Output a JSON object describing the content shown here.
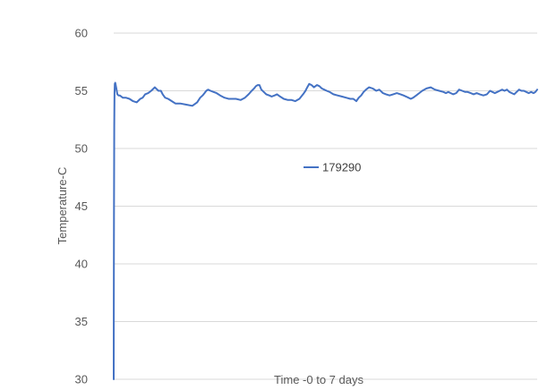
{
  "chart_data": {
    "type": "line",
    "title": "",
    "xlabel": "Time -0 to 7 days",
    "ylabel": "Temperature-C",
    "xlim": [
      0,
      7
    ],
    "ylim": [
      30,
      60
    ],
    "ytick_step": 5,
    "yticks": [
      "30",
      "35",
      "40",
      "45",
      "50",
      "55",
      "60"
    ],
    "grid": true,
    "legend_position": "center-right",
    "series": [
      {
        "name": "179290",
        "color": "#4472c4",
        "x": [
          0.0,
          0.002,
          0.005,
          0.009,
          0.013,
          0.018,
          0.025,
          0.04,
          0.06,
          0.08,
          0.1,
          0.15,
          0.2,
          0.26,
          0.32,
          0.38,
          0.44,
          0.48,
          0.52,
          0.57,
          0.62,
          0.68,
          0.74,
          0.78,
          0.81,
          0.85,
          0.9,
          0.96,
          1.02,
          1.1,
          1.2,
          1.3,
          1.38,
          1.43,
          1.47,
          1.5,
          1.53,
          1.56,
          1.6,
          1.65,
          1.7,
          1.76,
          1.83,
          1.9,
          1.95,
          2.02,
          2.1,
          2.17,
          2.23,
          2.28,
          2.32,
          2.35,
          2.38,
          2.41,
          2.44,
          2.48,
          2.52,
          2.57,
          2.61,
          2.66,
          2.7,
          2.75,
          2.81,
          2.88,
          2.94,
          3.0,
          3.07,
          3.13,
          3.17,
          3.2,
          3.23,
          3.27,
          3.31,
          3.36,
          3.4,
          3.44,
          3.48,
          3.52,
          3.57,
          3.63,
          3.7,
          3.77,
          3.84,
          3.91,
          3.96,
          4.01,
          4.05,
          4.09,
          4.13,
          4.17,
          4.22,
          4.28,
          4.34,
          4.39,
          4.45,
          4.5,
          4.56,
          4.62,
          4.68,
          4.74,
          4.79,
          4.83,
          4.87,
          4.91,
          4.95,
          5.0,
          5.05,
          5.1,
          5.17,
          5.24,
          5.31,
          5.38,
          5.45,
          5.49,
          5.53,
          5.57,
          5.61,
          5.66,
          5.71,
          5.76,
          5.81,
          5.85,
          5.9,
          5.95,
          6.0,
          6.05,
          6.11,
          6.17,
          6.22,
          6.26,
          6.3,
          6.34,
          6.38,
          6.42,
          6.46,
          6.5,
          6.54,
          6.58,
          6.62,
          6.66,
          6.7,
          6.74,
          6.78,
          6.82,
          6.86,
          6.9,
          6.94,
          6.97,
          7.0
        ],
        "values": [
          30.0,
          36.5,
          44.0,
          52.0,
          54.8,
          55.6,
          55.7,
          55.3,
          54.7,
          54.6,
          54.6,
          54.4,
          54.4,
          54.3,
          54.1,
          54.0,
          54.3,
          54.4,
          54.7,
          54.8,
          55.0,
          55.3,
          55.0,
          55.0,
          54.7,
          54.4,
          54.3,
          54.1,
          53.9,
          53.9,
          53.8,
          53.7,
          54.0,
          54.4,
          54.6,
          54.8,
          55.0,
          55.1,
          55.0,
          54.9,
          54.8,
          54.6,
          54.4,
          54.3,
          54.3,
          54.3,
          54.2,
          54.4,
          54.7,
          55.0,
          55.2,
          55.4,
          55.5,
          55.5,
          55.1,
          54.9,
          54.7,
          54.6,
          54.5,
          54.6,
          54.7,
          54.5,
          54.3,
          54.2,
          54.2,
          54.1,
          54.3,
          54.7,
          55.0,
          55.3,
          55.6,
          55.5,
          55.3,
          55.5,
          55.4,
          55.2,
          55.1,
          55.0,
          54.9,
          54.7,
          54.6,
          54.5,
          54.4,
          54.3,
          54.3,
          54.1,
          54.4,
          54.6,
          54.9,
          55.1,
          55.3,
          55.2,
          55.0,
          55.1,
          54.8,
          54.7,
          54.6,
          54.7,
          54.8,
          54.7,
          54.6,
          54.5,
          54.4,
          54.3,
          54.4,
          54.6,
          54.8,
          55.0,
          55.2,
          55.3,
          55.1,
          55.0,
          54.9,
          54.8,
          54.9,
          54.8,
          54.7,
          54.8,
          55.1,
          55.0,
          54.9,
          54.9,
          54.8,
          54.7,
          54.8,
          54.7,
          54.6,
          54.7,
          55.0,
          54.9,
          54.8,
          54.9,
          55.0,
          55.1,
          55.0,
          55.1,
          54.9,
          54.8,
          54.7,
          54.9,
          55.1,
          55.0,
          55.0,
          54.9,
          54.8,
          54.9,
          54.8,
          54.9,
          55.1
        ]
      }
    ]
  }
}
